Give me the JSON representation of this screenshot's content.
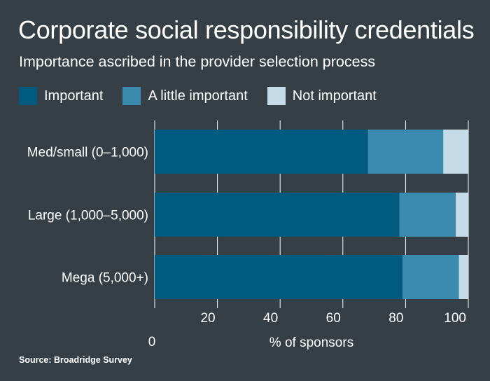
{
  "chart_data": {
    "type": "bar",
    "orientation": "horizontal",
    "stacked": true,
    "title": "Corporate social responsibility credentials",
    "subtitle": "Importance ascribed in the provider selection process",
    "categories": [
      "Med/small (0–1,000)",
      "Large (1,000–5,000)",
      "Mega (5,000+)"
    ],
    "series": [
      {
        "name": "Important",
        "color": "#005b7f",
        "values": [
          68,
          78,
          79
        ]
      },
      {
        "name": "A little important",
        "color": "#3b8baf",
        "values": [
          24,
          18,
          18
        ]
      },
      {
        "name": "Not important",
        "color": "#c5dbe7",
        "values": [
          8,
          4,
          3
        ]
      }
    ],
    "xlabel": "% of sponsors",
    "xlim": [
      0,
      100
    ],
    "xticks": [
      0,
      20,
      40,
      60,
      80,
      100
    ],
    "tick_labels": [
      "0",
      "20",
      "40",
      "60",
      "80",
      "100"
    ],
    "grid": true,
    "legend_position": "top-left",
    "source": "Source: Broadridge Survey"
  }
}
